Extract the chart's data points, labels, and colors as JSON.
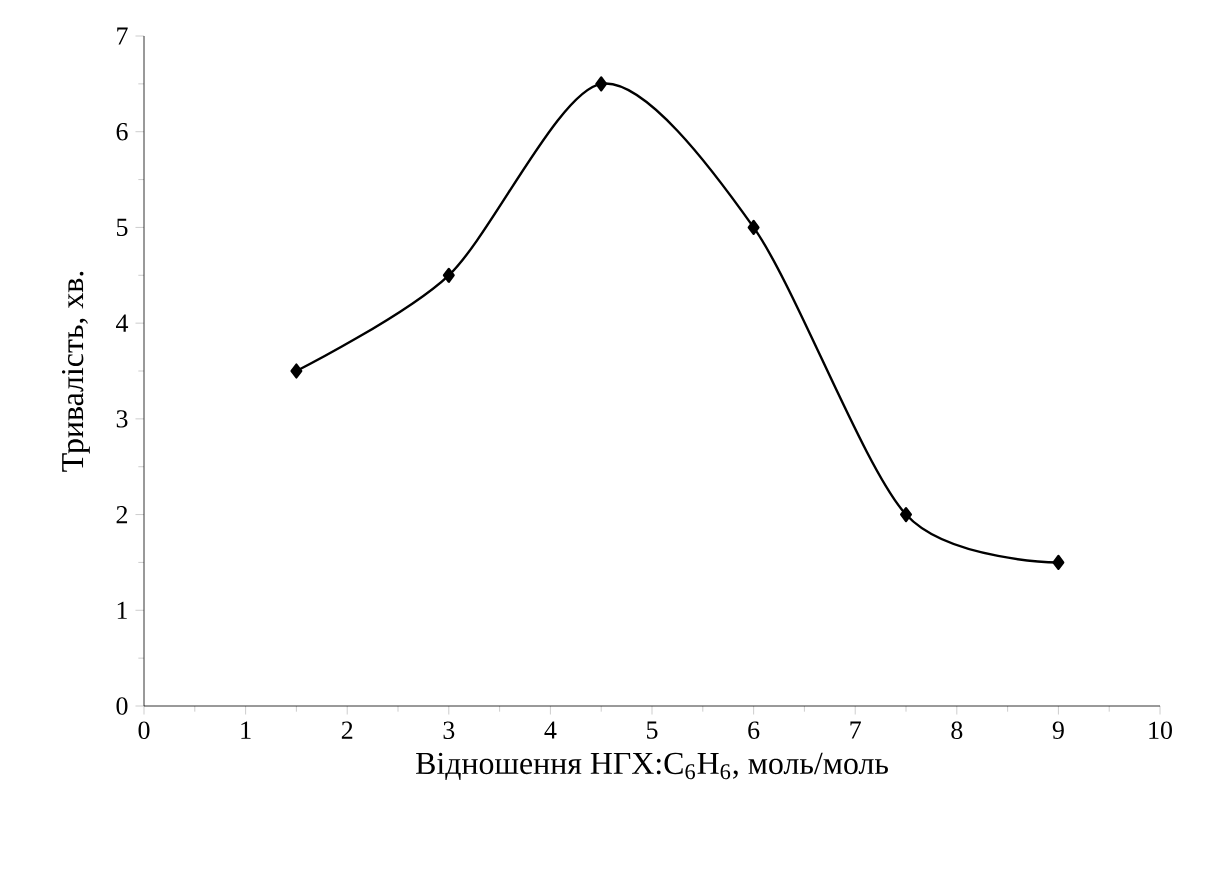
{
  "chart_data": {
    "type": "line",
    "xlabel": "Відношення НГХ:C$_{6}$H$_{6}$, моль/моль",
    "ylabel": "Тривалість, хв.",
    "x": [
      1.5,
      3,
      4.5,
      6,
      7.5,
      9
    ],
    "series": [
      {
        "color": "#000000",
        "values": [
          3.5,
          4.5,
          6.5,
          5,
          2,
          1.5
        ]
      }
    ],
    "xlim": [
      0,
      10
    ],
    "ylim": [
      0,
      7
    ],
    "xticks": [
      0,
      1,
      2,
      3,
      4,
      5,
      6,
      7,
      8,
      9,
      10
    ],
    "yticks": [
      0,
      1,
      2,
      3,
      4,
      5,
      6,
      7
    ],
    "marker": "diamond",
    "line_style": "solid",
    "grid": false
  }
}
